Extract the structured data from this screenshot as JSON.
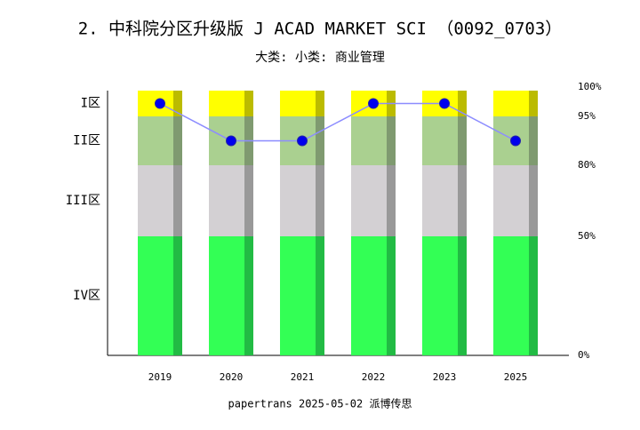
{
  "chart_data": {
    "type": "stacked-bar-line",
    "title": "2. 中科院分区升级版 J ACAD MARKET SCI （0092_0703）",
    "subtitle": "大类:  小类: 商业管理",
    "footer": "papertrans 2025-05-02 派博传思",
    "categories": [
      "2019",
      "2020",
      "2021",
      "2022",
      "2023",
      "2025"
    ],
    "series": [
      {
        "name": "IV区",
        "color": "#33ff55",
        "side_color": "#22bb44",
        "values": [
          50,
          50,
          50,
          50,
          50,
          50
        ]
      },
      {
        "name": "III区",
        "color": "#d3d0d3",
        "side_color": "#999999",
        "values": [
          30,
          30,
          30,
          30,
          30,
          30
        ]
      },
      {
        "name": "II区",
        "color": "#aad090",
        "side_color": "#7f9a70",
        "values": [
          15,
          15,
          15,
          15,
          15,
          15
        ]
      },
      {
        "name": "I区",
        "color": "#ffff00",
        "side_color": "#bbbb00",
        "values": [
          5,
          5,
          5,
          5,
          5,
          5
        ]
      }
    ],
    "points": {
      "color": "#0000ee",
      "line_color": "#8c8cff",
      "values": [
        97.5,
        87.5,
        87.5,
        97.5,
        97.5,
        87.5
      ]
    },
    "ylim": [
      0,
      100
    ],
    "yticks": [
      {
        "value": 0,
        "label": "0%"
      },
      {
        "value": 50,
        "label": "50%"
      },
      {
        "value": 80,
        "label": "80%"
      },
      {
        "value": 95,
        "label": "95%"
      },
      {
        "value": 100,
        "label": "100%"
      }
    ]
  }
}
